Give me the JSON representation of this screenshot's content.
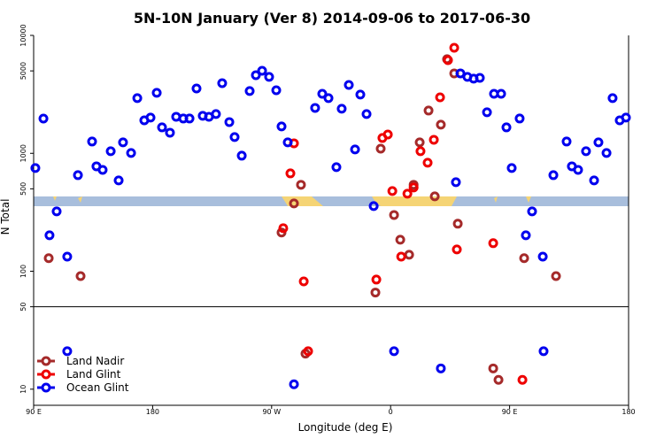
{
  "chart_data": {
    "type": "scatter",
    "title": "5N-10N January (Ver 8)   2014-09-06 to 2017-06-30",
    "x_label": "Longitude (deg E)",
    "y_label": "N Total",
    "log_y": true,
    "reference_line": 50,
    "legend": "bottom-left",
    "xlim": [
      90,
      540
    ],
    "ylim": [
      7.3,
      10000
    ],
    "xticks": [
      {
        "value": 90,
        "label": "90 E"
      },
      {
        "value": 180,
        "label": "180"
      },
      {
        "value": 270,
        "label": "90 W"
      },
      {
        "value": 360,
        "label": "0"
      },
      {
        "value": 450,
        "label": "90 E"
      },
      {
        "value": 540,
        "label": "180"
      }
    ],
    "yticks": [
      10,
      50,
      100,
      500,
      1000,
      5000,
      10000
    ],
    "series": [
      {
        "name": "Land Nadir",
        "color": "#a52a2a",
        "x": [
          101.4,
          125.5,
          277.5,
          286.9,
          292.2,
          295.6,
          348.5,
          352.5,
          362.6,
          367.3,
          374.0,
          377.4,
          382.0,
          388.7,
          393.4,
          398.0,
          402.7,
          408.1,
          410.8,
          437.6,
          441.6,
          461.0,
          485.1
        ],
        "values": [
          129,
          91,
          213,
          376,
          541,
          20,
          66,
          1096,
          300,
          185,
          138,
          541,
          1239,
          2305,
          432,
          1750,
          6281,
          4761,
          253,
          15,
          12,
          129,
          91
        ]
      },
      {
        "name": "Land Glint",
        "color": "#ee0000",
        "x": [
          286.9,
          284.2,
          278.8,
          294.3,
          297.6,
          349.2,
          353.8,
          357.9,
          361.3,
          368.0,
          372.7,
          377.4,
          382.6,
          388.0,
          392.7,
          397.4,
          403.4,
          408.1,
          410.1,
          437.6,
          459.7
        ],
        "values": [
          1216,
          676,
          232,
          82,
          21,
          85,
          1349,
          1445,
          479,
          133,
          455,
          513,
          1042,
          832,
          1303,
          2985,
          6166,
          7852,
          153,
          173,
          12
        ]
      },
      {
        "name": "Ocean Glint",
        "color": "#0000ee",
        "x": [
          91.3,
          97.4,
          102,
          107.4,
          115.4,
          115.4,
          123.5,
          134.2,
          137.5,
          142.2,
          148.3,
          154.3,
          157.6,
          163.7,
          168.4,
          173.7,
          178.4,
          183.1,
          187.1,
          193.1,
          197.8,
          203.2,
          207.9,
          213.2,
          217.9,
          222.6,
          227.9,
          232.6,
          238.0,
          242.0,
          247.4,
          253.4,
          258.1,
          262.8,
          268.1,
          273.5,
          277.5,
          282.2,
          286.9,
          302.9,
          308.3,
          313.0,
          319.0,
          323.0,
          328.4,
          333.1,
          337.1,
          341.8,
          347.2,
          362.6,
          398.0,
          409.4,
          412.8,
          418.1,
          422.8,
          427.5,
          432.9,
          438.2,
          443.6,
          447.6,
          451.6,
          457.6,
          462.3,
          467.0,
          475.1,
          475.7,
          483.1,
          493.1,
          497.1,
          501.8,
          507.8,
          513.9,
          517.2,
          523.3,
          527.9,
          533.3,
          538.0
        ],
        "values": [
          750,
          1970,
          202,
          322,
          133,
          21,
          653,
          1259,
          776,
          724,
          1042,
          589,
          1239,
          1007,
          2938,
          1905,
          2008,
          3258,
          1660,
          1496,
          2042,
          1973,
          1973,
          3548,
          2080,
          2042,
          2153,
          3936,
          1841,
          1374,
          955,
          3373,
          4600,
          5012,
          4446,
          3428,
          1690,
          1239,
          11,
          2427,
          3199,
          2938,
          763,
          2387,
          3802,
          1079,
          3147,
          2153,
          357,
          21,
          15,
          569,
          4761,
          4446,
          4295,
          4365,
          2228,
          3199,
          3199,
          1660,
          750,
          1973,
          202,
          322,
          133,
          21,
          653,
          1259,
          776,
          724,
          1042,
          589,
          1239,
          1007,
          2938,
          1905,
          2008
        ]
      }
    ]
  }
}
